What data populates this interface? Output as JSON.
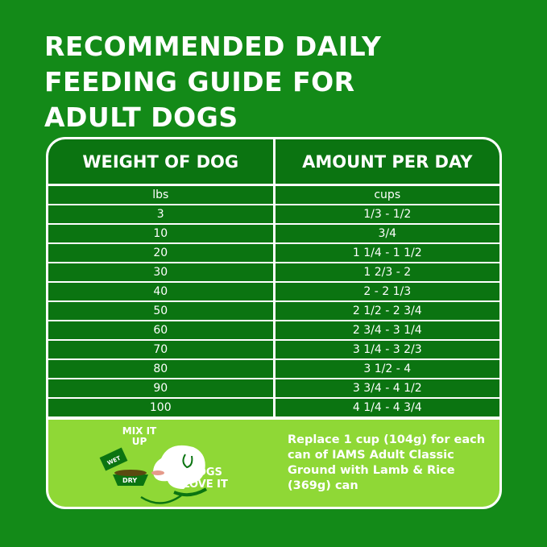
{
  "title_lines": [
    "RECOMMENDED DAILY",
    "FEEDING GUIDE FOR",
    "ADULT DOGS"
  ],
  "table": {
    "headers": [
      "WEIGHT OF DOG",
      "AMOUNT PER DAY"
    ],
    "units": [
      "lbs",
      "cups"
    ],
    "rows": [
      {
        "weight": "3",
        "amount": "1/3 - 1/2"
      },
      {
        "weight": "10",
        "amount": "3/4"
      },
      {
        "weight": "20",
        "amount": "1 1/4 - 1 1/2"
      },
      {
        "weight": "30",
        "amount": "1 2/3 - 2"
      },
      {
        "weight": "40",
        "amount": "2 - 2 1/3"
      },
      {
        "weight": "50",
        "amount": "2 1/2 - 2 3/4"
      },
      {
        "weight": "60",
        "amount": "2 3/4 - 3 1/4"
      },
      {
        "weight": "70",
        "amount": "3 1/4 - 3 2/3"
      },
      {
        "weight": "80",
        "amount": "3 1/2 - 4"
      },
      {
        "weight": "90",
        "amount": "3 3/4 - 4 1/2"
      },
      {
        "weight": "100",
        "amount": "4 1/4 - 4 3/4"
      }
    ]
  },
  "promo": {
    "mix_label": "MIX IT UP",
    "wet_label": "WET",
    "dry_label": "DRY",
    "love_label": "DOGS LOVE IT",
    "text": "Replace 1 cup (104g) for each can of IAMS Adult Classic Ground with Lamb & Rice (369g) can"
  },
  "colors": {
    "background": "#138a18",
    "table_cell": "#0b7411",
    "promo": "#8fd836"
  }
}
